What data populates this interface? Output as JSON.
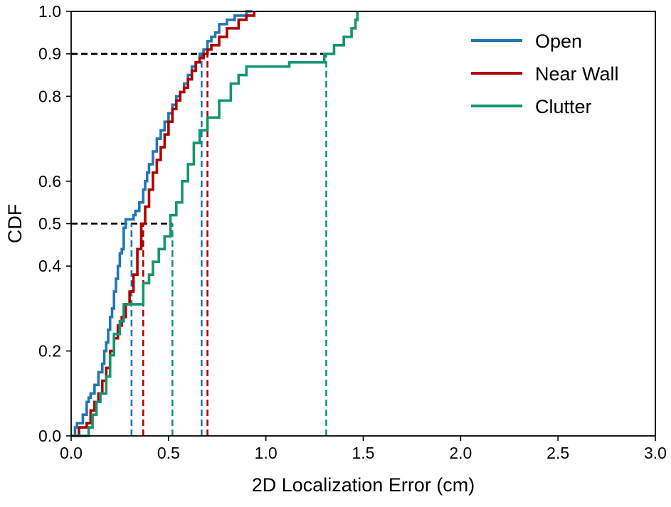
{
  "chart_data": {
    "type": "line",
    "title": "",
    "xlabel": "2D Localization Error (cm)",
    "ylabel": "CDF",
    "xlim": [
      0,
      3
    ],
    "ylim": [
      0,
      1
    ],
    "xticks": [
      0,
      0.5,
      1.0,
      1.5,
      2.0,
      2.5,
      3.0
    ],
    "xtick_labels": [
      "0.0",
      "0.5",
      "1.0",
      "1.5",
      "2.0",
      "2.5",
      "3.0"
    ],
    "yticks": [
      0,
      0.2,
      0.4,
      0.5,
      0.6,
      0.8,
      0.9,
      1.0
    ],
    "ytick_labels": [
      "0.0",
      "0.2",
      "0.4",
      "0.5",
      "0.6",
      "0.8",
      "0.9",
      "1.0"
    ],
    "grid": false,
    "legend_position": "top-right",
    "series": [
      {
        "name": "Open",
        "color": "#1f77b4",
        "x": [
          0.0,
          0.02,
          0.03,
          0.06,
          0.08,
          0.09,
          0.1,
          0.12,
          0.14,
          0.16,
          0.17,
          0.18,
          0.19,
          0.2,
          0.21,
          0.22,
          0.23,
          0.24,
          0.25,
          0.26,
          0.27,
          0.28,
          0.29,
          0.31,
          0.32,
          0.33,
          0.35,
          0.37,
          0.38,
          0.39,
          0.4,
          0.42,
          0.44,
          0.46,
          0.48,
          0.5,
          0.52,
          0.54,
          0.56,
          0.58,
          0.6,
          0.62,
          0.64,
          0.66,
          0.68,
          0.7,
          0.72,
          0.74,
          0.76,
          0.8,
          0.84,
          0.9,
          0.93
        ],
        "y": [
          0.0,
          0.02,
          0.03,
          0.05,
          0.08,
          0.09,
          0.1,
          0.12,
          0.15,
          0.17,
          0.2,
          0.22,
          0.25,
          0.28,
          0.3,
          0.34,
          0.37,
          0.4,
          0.43,
          0.44,
          0.49,
          0.51,
          0.51,
          0.51,
          0.52,
          0.53,
          0.55,
          0.58,
          0.6,
          0.62,
          0.64,
          0.67,
          0.7,
          0.72,
          0.74,
          0.76,
          0.78,
          0.8,
          0.81,
          0.83,
          0.85,
          0.87,
          0.88,
          0.9,
          0.91,
          0.93,
          0.94,
          0.95,
          0.97,
          0.98,
          0.99,
          1.0,
          1.0
        ]
      },
      {
        "name": "Near Wall",
        "color": "#b00000",
        "x": [
          0.0,
          0.04,
          0.08,
          0.1,
          0.12,
          0.14,
          0.16,
          0.18,
          0.2,
          0.22,
          0.24,
          0.26,
          0.28,
          0.3,
          0.32,
          0.34,
          0.36,
          0.38,
          0.4,
          0.42,
          0.44,
          0.46,
          0.48,
          0.5,
          0.52,
          0.54,
          0.56,
          0.58,
          0.6,
          0.62,
          0.64,
          0.66,
          0.68,
          0.7,
          0.72,
          0.76,
          0.8,
          0.86,
          0.9,
          0.94
        ],
        "y": [
          0.0,
          0.02,
          0.03,
          0.06,
          0.08,
          0.1,
          0.13,
          0.16,
          0.2,
          0.23,
          0.26,
          0.28,
          0.31,
          0.34,
          0.38,
          0.44,
          0.5,
          0.54,
          0.58,
          0.62,
          0.65,
          0.68,
          0.71,
          0.74,
          0.77,
          0.79,
          0.81,
          0.82,
          0.84,
          0.86,
          0.88,
          0.89,
          0.9,
          0.91,
          0.92,
          0.94,
          0.96,
          0.98,
          0.99,
          1.0
        ]
      },
      {
        "name": "Clutter",
        "color": "#159570",
        "x": [
          0.0,
          0.09,
          0.11,
          0.13,
          0.15,
          0.18,
          0.2,
          0.22,
          0.25,
          0.27,
          0.3,
          0.35,
          0.37,
          0.4,
          0.42,
          0.45,
          0.48,
          0.51,
          0.54,
          0.57,
          0.6,
          0.63,
          0.66,
          0.7,
          0.76,
          0.82,
          0.86,
          0.9,
          0.96,
          1.02,
          1.12,
          1.3,
          1.35,
          1.4,
          1.44,
          1.46,
          1.47
        ],
        "y": [
          0.0,
          0.02,
          0.05,
          0.08,
          0.1,
          0.14,
          0.19,
          0.24,
          0.27,
          0.31,
          0.31,
          0.31,
          0.36,
          0.38,
          0.41,
          0.44,
          0.47,
          0.52,
          0.55,
          0.6,
          0.64,
          0.69,
          0.72,
          0.75,
          0.79,
          0.83,
          0.85,
          0.87,
          0.87,
          0.87,
          0.88,
          0.9,
          0.92,
          0.94,
          0.96,
          0.98,
          1.0
        ]
      }
    ],
    "reference_lines": [
      {
        "type": "horizontal",
        "y": 0.5,
        "x_end": 0.52,
        "color": "#000000"
      },
      {
        "type": "horizontal",
        "y": 0.9,
        "x_end": 1.31,
        "color": "#000000"
      },
      {
        "type": "vertical",
        "series": "Open",
        "x": 0.31,
        "y_end": 0.5,
        "color": "#1f77b4"
      },
      {
        "type": "vertical",
        "series": "Open",
        "x": 0.67,
        "y_end": 0.9,
        "color": "#1f77b4"
      },
      {
        "type": "vertical",
        "series": "Near Wall",
        "x": 0.37,
        "y_end": 0.5,
        "color": "#b00000"
      },
      {
        "type": "vertical",
        "series": "Near Wall",
        "x": 0.7,
        "y_end": 0.9,
        "color": "#b00000"
      },
      {
        "type": "vertical",
        "series": "Clutter",
        "x": 0.52,
        "y_end": 0.5,
        "color": "#159570"
      },
      {
        "type": "vertical",
        "series": "Clutter",
        "x": 1.31,
        "y_end": 0.9,
        "color": "#159570"
      }
    ]
  }
}
